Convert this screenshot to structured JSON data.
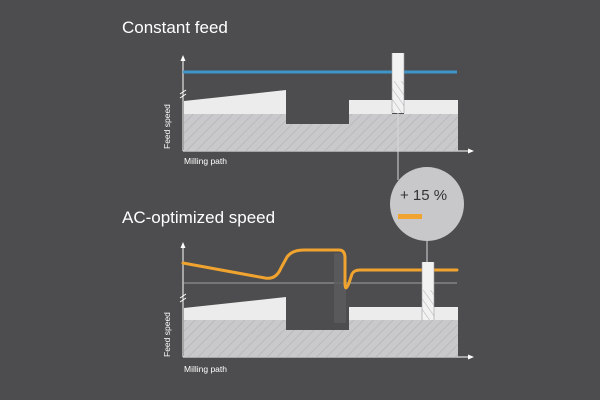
{
  "panels": {
    "top": {
      "title": "Constant feed",
      "y_axis_label": "Feed speed",
      "x_axis_label": "Milling path"
    },
    "bottom": {
      "title": "AC-optimized speed",
      "y_axis_label": "Feed speed",
      "x_axis_label": "Milling path"
    }
  },
  "callout": {
    "value_label": "+ 15 %"
  },
  "colors": {
    "background": "#4d4d4f",
    "constant_feed_line": "#3f95c8",
    "optimized_feed_line": "#f0a32e",
    "workpiece": "#c9c9cb",
    "workpiece_top": "#ececec",
    "callout_circle": "#c8c8ca",
    "tool": "#f2f2f2"
  }
}
